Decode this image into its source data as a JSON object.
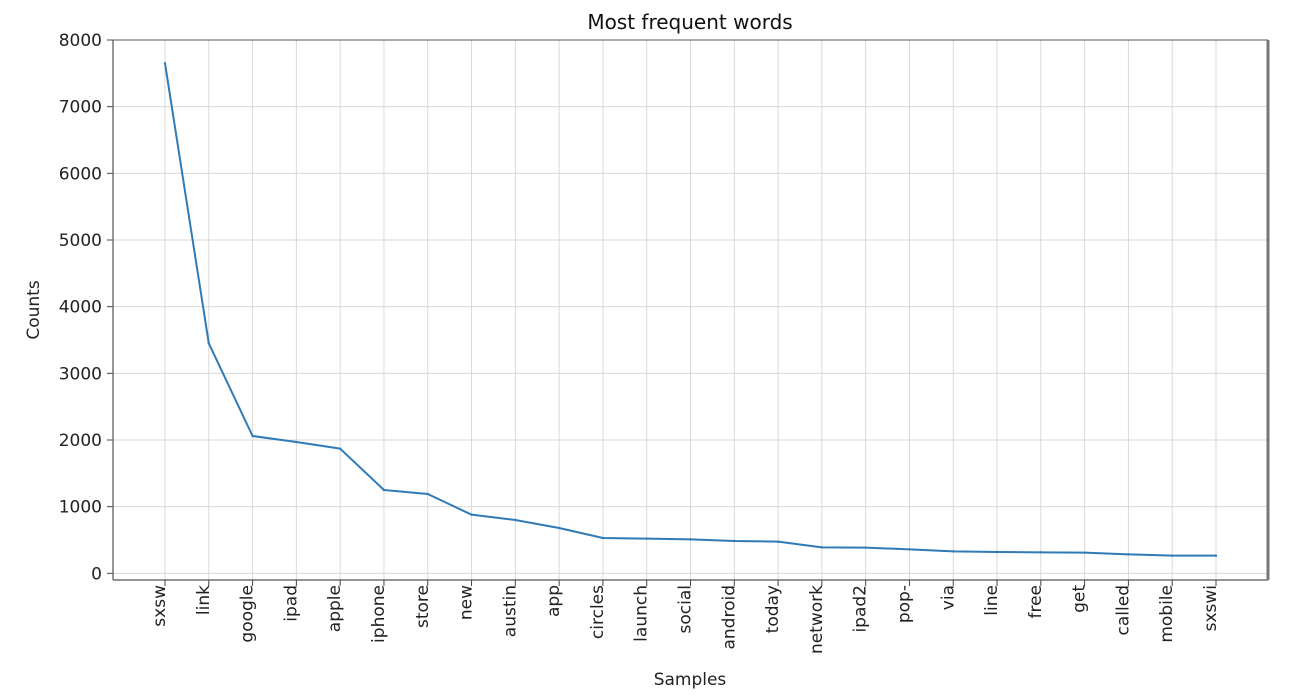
{
  "chart_data": {
    "type": "line",
    "title": "Most frequent words",
    "xlabel": "Samples",
    "ylabel": "Counts",
    "ylim": [
      -100,
      8000
    ],
    "yticks": [
      0,
      1000,
      2000,
      3000,
      4000,
      5000,
      6000,
      7000,
      8000
    ],
    "grid": true,
    "legend": "none",
    "categories": [
      "sxsw",
      "link",
      "google",
      "ipad",
      "apple",
      "iphone",
      "store",
      "new",
      "austin",
      "app",
      "circles",
      "launch",
      "social",
      "android",
      "today",
      "network",
      "ipad2",
      "pop-",
      "via",
      "line",
      "free",
      "get",
      "called",
      "mobile",
      "sxswi"
    ],
    "series": [
      {
        "color": "#2f7bb8",
        "values": [
          7650,
          3450,
          2060,
          1970,
          1870,
          1250,
          1190,
          880,
          800,
          680,
          530,
          520,
          510,
          485,
          475,
          390,
          385,
          360,
          330,
          320,
          315,
          310,
          285,
          265,
          265
        ]
      }
    ]
  }
}
